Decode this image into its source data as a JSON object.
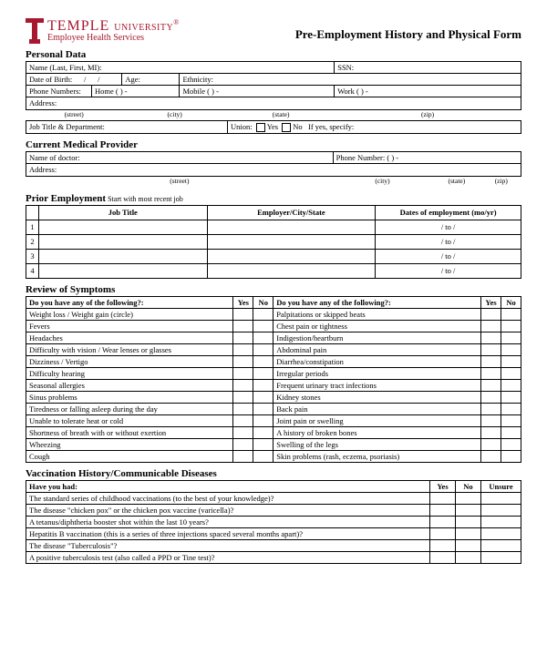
{
  "header": {
    "temple": "TEMPLE",
    "university": "UNIVERSITY",
    "reg": "®",
    "sub": "Employee Health Services",
    "title": "Pre-Employment History and Physical Form",
    "logo_color": "#a6192e"
  },
  "personal": {
    "heading": "Personal Data",
    "name_label": "Name (Last, First, MI):",
    "ssn_label": "SSN:",
    "dob_label": "Date of Birth:",
    "age_label": "Age:",
    "ethnicity_label": "Ethnicity:",
    "phone_label": "Phone Numbers:",
    "home_label": "Home (       )           -",
    "mobile_label": "Mobile (       )           -",
    "work_label": "Work (       )           -",
    "address_label": "Address:",
    "street": "(street)",
    "city": "(city)",
    "state": "(state)",
    "zip": "(zip)",
    "job_label": "Job Title & Department:",
    "union_label": "Union:",
    "yes": "Yes",
    "no": "No",
    "ifyes": "If yes, specify:"
  },
  "provider": {
    "heading": "Current Medical Provider",
    "doctor_label": "Name of doctor:",
    "phone_label": "Phone Number: (       )           -",
    "address_label": "Address:"
  },
  "employment": {
    "heading": "Prior Employment",
    "sub": " Start with most recent job",
    "col_title": "Job Title",
    "col_emp": "Employer/City/State",
    "col_dates": "Dates of employment (mo/yr)",
    "dateblank": "/        to        /",
    "rows": [
      "1",
      "2",
      "3",
      "4"
    ]
  },
  "symptoms": {
    "heading": "Review of Symptoms",
    "q1": "Do you have any of the following?:",
    "q2": "Do you have any of the following?:",
    "yes": "Yes",
    "no": "No",
    "left": [
      "Weight loss / Weight gain (circle)",
      "Fevers",
      "Headaches",
      "Difficulty with vision / Wear lenses or glasses",
      "Dizziness / Vertigo",
      "Difficulty hearing",
      "Seasonal allergies",
      "Sinus problems",
      "Tiredness or falling asleep during the day",
      "Unable to tolerate heat or cold",
      "Shortness of breath with or without exertion",
      "Wheezing",
      "Cough"
    ],
    "right": [
      "Palpitations or skipped beats",
      "Chest pain or tightness",
      "Indigestion/heartburn",
      "Abdominal pain",
      "Diarrhea/constipation",
      "Irregular periods",
      "Frequent urinary tract infections",
      "Kidney stones",
      "Back pain",
      "Joint pain or swelling",
      "A history of broken bones",
      "Swelling of the legs",
      "Skin problems (rash, eczema, psoriasis)"
    ]
  },
  "vaccination": {
    "heading": "Vaccination History/Communicable Diseases",
    "have": "Have you had:",
    "yes": "Yes",
    "no": "No",
    "unsure": "Unsure",
    "items": [
      "The standard series of childhood vaccinations (to the best of your knowledge)?",
      "The disease \"chicken pox\" or the chicken pox vaccine (varicella)?",
      "A tetanus/diphtheria booster shot within the last 10 years?",
      "Hepatitis B vaccination (this is a series of three injections spaced several months apart)?",
      "The disease \"Tuberculosis\"?",
      "A positive tuberculosis test (also called a PPD or Tine test)?"
    ]
  }
}
